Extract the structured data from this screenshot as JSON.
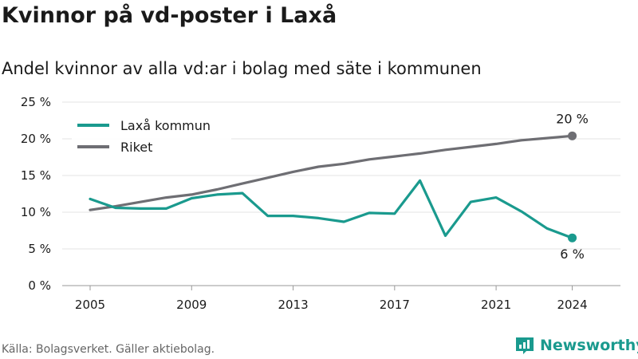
{
  "title": "Kvinnor på vd-poster i Laxå",
  "subtitle": "Andel kvinnor av alla vd:ar i bolag med säte i kommunen",
  "source": "Källa: Bolagsverket. Gäller aktiebolag.",
  "brand": {
    "name": "Newsworthy",
    "icon": "newsworthy-logo-icon",
    "color": "#1a9a8e"
  },
  "chart_data": {
    "type": "line",
    "title": "Kvinnor på vd-poster i Laxå",
    "subtitle": "Andel kvinnor av alla vd:ar i bolag med säte i kommunen",
    "x": [
      2005,
      2006,
      2007,
      2008,
      2009,
      2010,
      2011,
      2012,
      2013,
      2014,
      2015,
      2016,
      2017,
      2018,
      2019,
      2020,
      2021,
      2022,
      2023,
      2024
    ],
    "xticks": [
      2005,
      2009,
      2013,
      2017,
      2021,
      2024
    ],
    "xtick_labels": [
      "2005",
      "2009",
      "2013",
      "2017",
      "2021",
      "2024"
    ],
    "ylim": [
      0,
      25
    ],
    "yticks": [
      0,
      5,
      10,
      15,
      20,
      25
    ],
    "ytick_labels": [
      "0 %",
      "5 %",
      "10 %",
      "15 %",
      "20 %",
      "25 %"
    ],
    "grid": true,
    "legend_position": "top-left",
    "series": [
      {
        "name": "Laxå kommun",
        "color": "#1a9a8e",
        "values": [
          11.8,
          10.6,
          10.5,
          10.5,
          11.9,
          12.4,
          12.6,
          9.5,
          9.5,
          9.2,
          8.7,
          9.9,
          9.8,
          14.3,
          6.8,
          11.4,
          12.0,
          10.1,
          7.8,
          6.5
        ],
        "end_label": "6 %"
      },
      {
        "name": "Riket",
        "color": "#6e6e73",
        "values": [
          10.3,
          10.8,
          11.4,
          12.0,
          12.4,
          13.1,
          13.9,
          14.7,
          15.5,
          16.2,
          16.6,
          17.2,
          17.6,
          18.0,
          18.5,
          18.9,
          19.3,
          19.8,
          20.1,
          20.4
        ],
        "end_label": "20 %"
      }
    ]
  }
}
